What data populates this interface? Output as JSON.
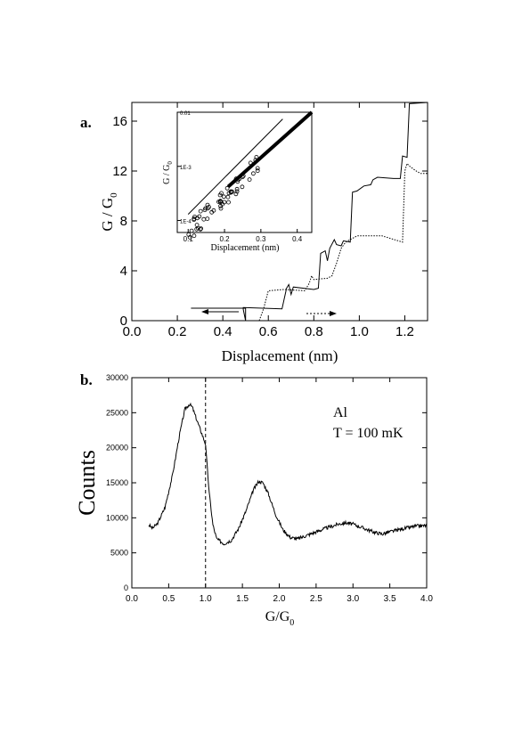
{
  "chart_data": [
    {
      "type": "line",
      "panel_label": "a.",
      "xlabel": "Displacement (nm)",
      "ylabel_main": "G / G",
      "ylabel_sub": "0",
      "xlim": [
        0.0,
        1.3
      ],
      "ylim": [
        0,
        17.5
      ],
      "xticks": [
        0.0,
        0.2,
        0.4,
        0.6,
        0.8,
        1.0,
        1.2
      ],
      "xtick_labels": [
        "0.0",
        "0.2",
        "0.4",
        "0.6",
        "0.8",
        "1.0",
        "1.2"
      ],
      "yticks": [
        0,
        4,
        8,
        12,
        16
      ],
      "ytick_labels": [
        "0",
        "4",
        "8",
        "12",
        "16"
      ],
      "series": [
        {
          "style": "solid",
          "points": [
            [
              0.26,
              1.0
            ],
            [
              0.5,
              1.0
            ],
            [
              0.5,
              0.0
            ],
            [
              0.49,
              0.9
            ],
            [
              0.49,
              1.05
            ],
            [
              0.66,
              0.95
            ],
            [
              0.68,
              2.6
            ],
            [
              0.69,
              2.9
            ],
            [
              0.7,
              2.1
            ],
            [
              0.71,
              2.7
            ],
            [
              0.8,
              2.5
            ],
            [
              0.82,
              2.6
            ],
            [
              0.83,
              5.4
            ],
            [
              0.85,
              5.6
            ],
            [
              0.86,
              4.8
            ],
            [
              0.87,
              5.8
            ],
            [
              0.89,
              6.5
            ],
            [
              0.9,
              6.1
            ],
            [
              0.92,
              6.0
            ],
            [
              0.93,
              6.4
            ],
            [
              0.96,
              6.3
            ],
            [
              0.97,
              10.3
            ],
            [
              0.99,
              10.4
            ],
            [
              1.02,
              10.8
            ],
            [
              1.05,
              10.9
            ],
            [
              1.06,
              11.3
            ],
            [
              1.08,
              11.5
            ],
            [
              1.15,
              11.4
            ],
            [
              1.18,
              11.4
            ],
            [
              1.19,
              13.2
            ],
            [
              1.21,
              13.1
            ],
            [
              1.22,
              17.4
            ],
            [
              1.3,
              17.5
            ]
          ]
        },
        {
          "style": "dotted",
          "points": [
            [
              0.56,
              0.0
            ],
            [
              0.58,
              1.0
            ],
            [
              0.6,
              2.4
            ],
            [
              0.67,
              2.5
            ],
            [
              0.76,
              2.4
            ],
            [
              0.78,
              3.0
            ],
            [
              0.79,
              3.6
            ],
            [
              0.8,
              3.3
            ],
            [
              0.86,
              3.4
            ],
            [
              0.88,
              3.6
            ],
            [
              0.9,
              4.6
            ],
            [
              0.92,
              5.8
            ],
            [
              0.94,
              6.3
            ],
            [
              0.99,
              6.8
            ],
            [
              1.1,
              6.8
            ],
            [
              1.19,
              6.3
            ],
            [
              1.2,
              12.0
            ],
            [
              1.21,
              12.6
            ],
            [
              1.22,
              12.4
            ],
            [
              1.25,
              12.0
            ],
            [
              1.27,
              11.8
            ],
            [
              1.3,
              11.8
            ]
          ]
        }
      ],
      "inset": {
        "type": "scatter",
        "xlabel": "Displacement (nm)",
        "ylabel_main": "G / G",
        "ylabel_sub": "0",
        "xlim": [
          0.07,
          0.44
        ],
        "ylog": true,
        "ylim": [
          6e-05,
          0.01
        ],
        "xticks": [
          0.1,
          0.2,
          0.3,
          0.4
        ],
        "xtick_labels": [
          "0.1",
          "0.2",
          "0.3",
          "0.4"
        ],
        "yticks": [
          0.0001,
          0.001,
          0.01
        ],
        "ytick_labels": [
          "1E-4",
          "1E-3",
          "0.01"
        ],
        "reference_line": [
          [
            0.1,
            0.00013
          ],
          [
            0.36,
            0.0075
          ]
        ],
        "data_line": [
          [
            0.1,
            6e-05
          ],
          [
            0.44,
            0.01
          ]
        ]
      }
    },
    {
      "type": "line",
      "panel_label": "b.",
      "xlabel_main": "G/G",
      "xlabel_sub": "0",
      "ylabel": "Counts",
      "xlim": [
        0.0,
        4.0
      ],
      "ylim": [
        0,
        30000
      ],
      "xticks": [
        0.0,
        0.5,
        1.0,
        1.5,
        2.0,
        2.5,
        3.0,
        3.5,
        4.0
      ],
      "xtick_labels": [
        "0.0",
        "0.5",
        "1.0",
        "1.5",
        "2.0",
        "2.5",
        "3.0",
        "3.5",
        "4.0"
      ],
      "yticks": [
        0,
        5000,
        10000,
        15000,
        20000,
        25000,
        30000
      ],
      "ytick_labels": [
        "0",
        "5000",
        "10000",
        "15000",
        "20000",
        "25000",
        "30000"
      ],
      "annotation_lines": [
        "Al",
        "T = 100 mK"
      ],
      "vline_x": 1.0,
      "series": [
        {
          "style": "solid",
          "points": [
            [
              0.23,
              9000
            ],
            [
              0.28,
              8500
            ],
            [
              0.35,
              9200
            ],
            [
              0.45,
              11500
            ],
            [
              0.55,
              16000
            ],
            [
              0.65,
              22000
            ],
            [
              0.72,
              25500
            ],
            [
              0.78,
              26200
            ],
            [
              0.82,
              25800
            ],
            [
              0.88,
              24000
            ],
            [
              0.95,
              22000
            ],
            [
              1.0,
              20500
            ],
            [
              1.05,
              13500
            ],
            [
              1.1,
              9000
            ],
            [
              1.15,
              7000
            ],
            [
              1.25,
              6300
            ],
            [
              1.35,
              6800
            ],
            [
              1.45,
              8500
            ],
            [
              1.55,
              11000
            ],
            [
              1.65,
              14000
            ],
            [
              1.72,
              15200
            ],
            [
              1.78,
              15000
            ],
            [
              1.85,
              13500
            ],
            [
              1.95,
              10500
            ],
            [
              2.05,
              8300
            ],
            [
              2.15,
              7200
            ],
            [
              2.25,
              7000
            ],
            [
              2.4,
              7600
            ],
            [
              2.6,
              8400
            ],
            [
              2.8,
              9100
            ],
            [
              2.9,
              9300
            ],
            [
              3.0,
              9100
            ],
            [
              3.15,
              8500
            ],
            [
              3.3,
              7900
            ],
            [
              3.4,
              7700
            ],
            [
              3.5,
              8000
            ],
            [
              3.7,
              8500
            ],
            [
              3.85,
              8800
            ],
            [
              4.0,
              8900
            ]
          ]
        }
      ]
    }
  ]
}
